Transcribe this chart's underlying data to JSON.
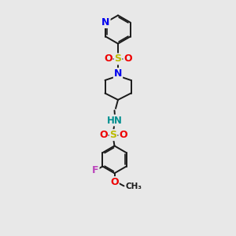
{
  "bg_color": "#e8e8e8",
  "bond_color": "#1a1a1a",
  "bond_width": 1.4,
  "atom_colors": {
    "N_blue": "#0000ee",
    "N_teal": "#009090",
    "S": "#bbbb00",
    "O": "#ee0000",
    "F": "#bb44bb",
    "C": "#1a1a1a"
  },
  "figsize": [
    3.0,
    3.0
  ],
  "dpi": 100,
  "xlim": [
    0,
    6
  ],
  "ylim": [
    0,
    10
  ]
}
